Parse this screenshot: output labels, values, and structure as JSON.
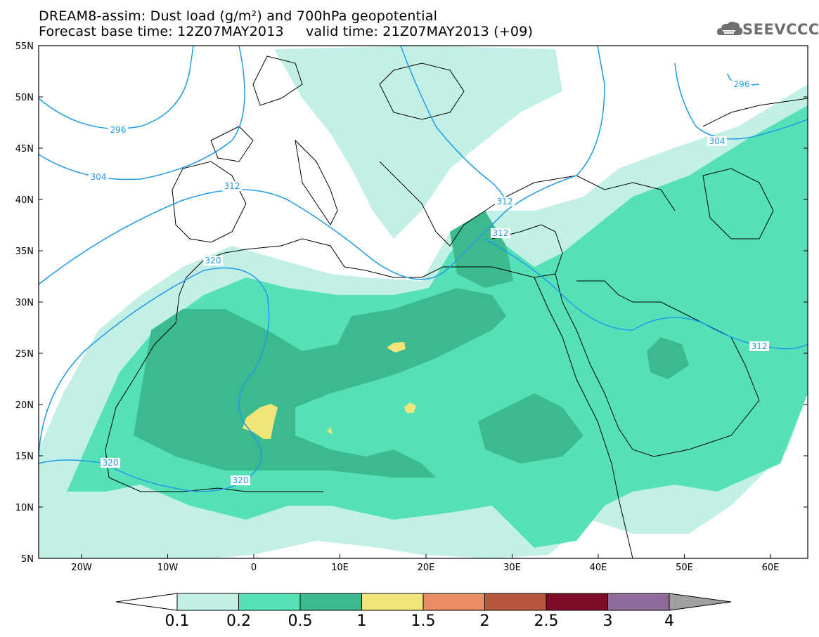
{
  "title": {
    "line1": "DREAM8-assim: Dust load (g/m²) and 700hPa geopotential",
    "line2": "Forecast base time: 12Z07MAY2013     valid time: 21Z07MAY2013 (+09)"
  },
  "logo": {
    "text": "SEEVCCC",
    "icon": "cloud-icon"
  },
  "map": {
    "lat_labels": [
      "55N",
      "50N",
      "45N",
      "40N",
      "35N",
      "30N",
      "25N",
      "20N",
      "15N",
      "10N",
      "5N"
    ],
    "lon_labels": [
      "20W",
      "10W",
      "0",
      "10E",
      "20E",
      "30E",
      "40E",
      "50E",
      "60E"
    ],
    "contour_labels": [
      "296",
      "304",
      "312",
      "320",
      "320",
      "320",
      "312",
      "312",
      "312",
      "296",
      "304"
    ],
    "colors": {
      "ocean": "#ffffff",
      "coast": "#000000",
      "contour": "#1e9be6"
    }
  },
  "colorbar": {
    "levels": [
      "0.1",
      "0.2",
      "0.5",
      "1",
      "1.5",
      "2",
      "2.5",
      "3",
      "4"
    ],
    "colors": [
      "#c3f0e6",
      "#55e0b8",
      "#3cb98f",
      "#f1e57a",
      "#e88c64",
      "#b8573f",
      "#7e0c28",
      "#8e6b9a"
    ],
    "over_color": "#a0a0a0",
    "under_color": "#ffffff"
  }
}
